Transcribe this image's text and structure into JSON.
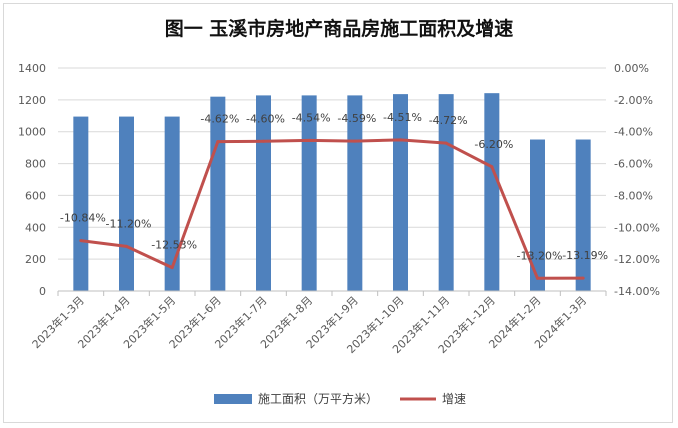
{
  "chart_data": {
    "type": "bar+line",
    "title": "图一 玉溪市房地产商品房施工面积及增速",
    "categories": [
      "2023年1-3月",
      "2023年1-4月",
      "2023年1-5月",
      "2023年1-6月",
      "2023年1-7月",
      "2023年1-8月",
      "2023年1-9月",
      "2023年1-10月",
      "2023年1-11月",
      "2023年1-12月",
      "2024年1-2月",
      "2024年1-3月"
    ],
    "series": [
      {
        "name": "施工面积（万平方米）",
        "type": "bar",
        "axis": "left",
        "color": "#4f81bd",
        "values": [
          1095,
          1095,
          1095,
          1220,
          1228,
          1228,
          1228,
          1236,
          1236,
          1242,
          951,
          951
        ]
      },
      {
        "name": "增速",
        "type": "line",
        "axis": "right",
        "color": "#c0504d",
        "values": [
          -10.84,
          -11.2,
          -12.53,
          -4.62,
          -4.6,
          -4.54,
          -4.59,
          -4.51,
          -4.72,
          -6.2,
          -13.2,
          -13.19
        ],
        "labels": [
          "-10.84%",
          "-11.20%",
          "-12.53%",
          "-4.62%",
          "-4.60%",
          "-4.54%",
          "-4.59%",
          "-4.51%",
          "-4.72%",
          "-6.20%",
          "-13.20%",
          "-13.19%"
        ]
      }
    ],
    "y_left": {
      "ylim": [
        0,
        1400
      ],
      "ticks": [
        "0",
        "200",
        "400",
        "600",
        "800",
        "1000",
        "1200",
        "1400"
      ]
    },
    "y_right": {
      "ylim": [
        -14,
        0
      ],
      "ticks": [
        "0.00%",
        "-2.00%",
        "-4.00%",
        "-6.00%",
        "-8.00%",
        "-10.00%",
        "-12.00%",
        "-14.00%"
      ]
    },
    "grid": true,
    "legend": {
      "position": "bottom"
    }
  }
}
